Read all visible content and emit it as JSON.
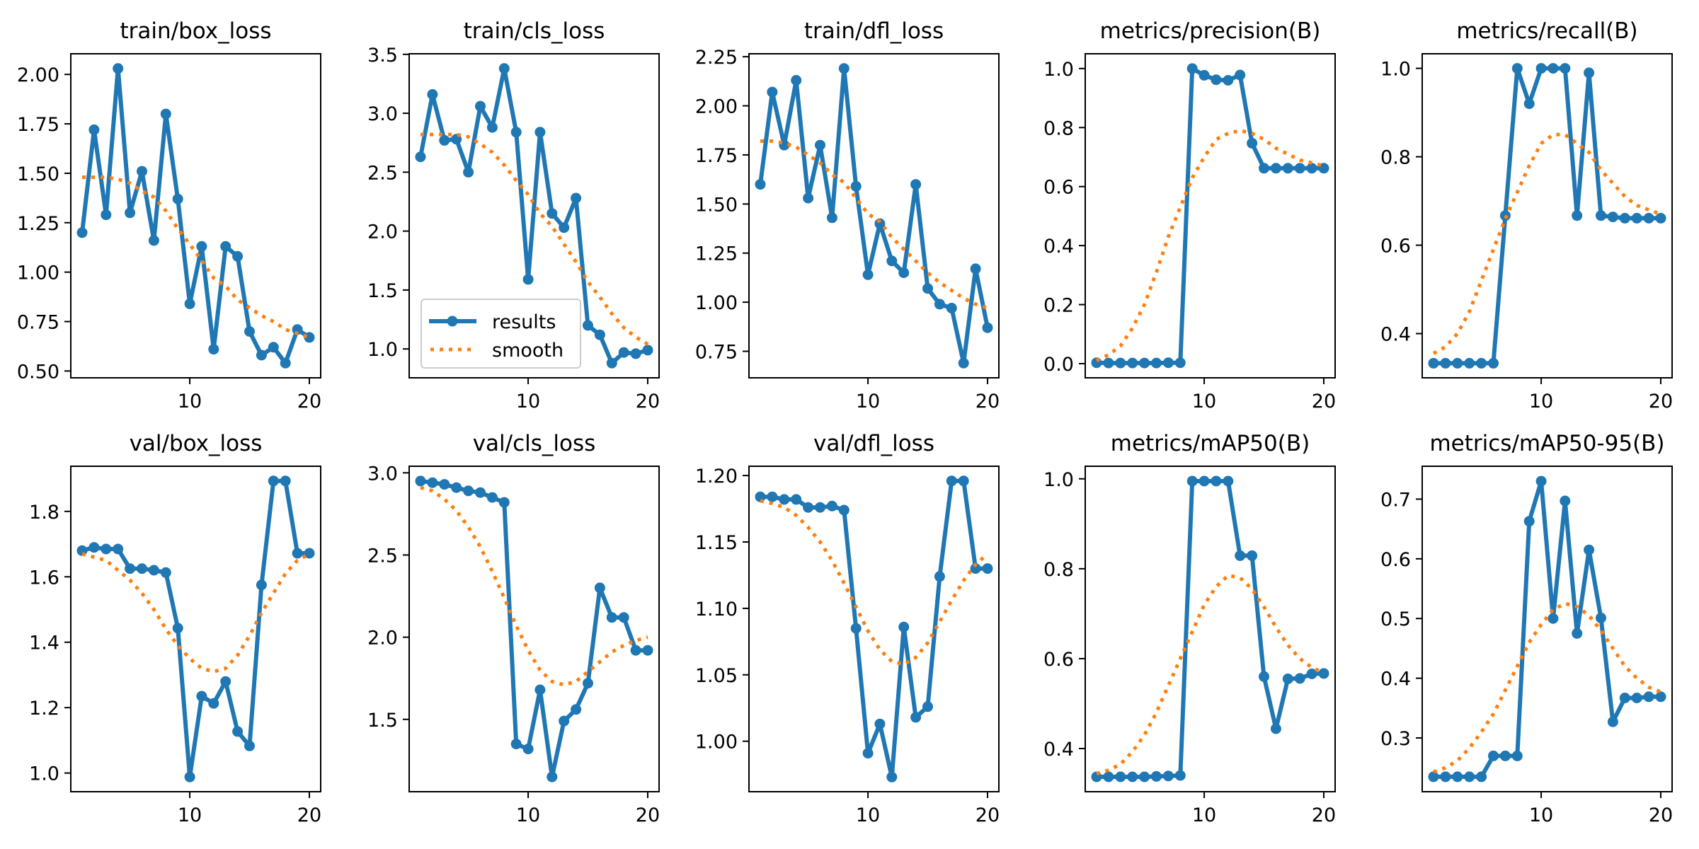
{
  "colors": {
    "results": "#1f77b4",
    "smooth": "#ff7f0e",
    "axes": "#000000",
    "legend_border": "#cccccc"
  },
  "legend": {
    "placement": "lower-left",
    "subplot_index": 1,
    "entries": [
      {
        "label": "results",
        "style": "line-with-markers"
      },
      {
        "label": "smooth",
        "style": "dotted"
      }
    ]
  },
  "chart_data": [
    {
      "type": "line",
      "title": "train/box_loss",
      "xlabel": "",
      "ylabel": "",
      "x": [
        1,
        2,
        3,
        4,
        5,
        6,
        7,
        8,
        9,
        10,
        11,
        12,
        13,
        14,
        15,
        16,
        17,
        18,
        19,
        20
      ],
      "xlim": [
        0.05,
        20.95
      ],
      "xticks": [
        10,
        20
      ],
      "ylim": [
        0.4655,
        2.1045
      ],
      "yticks": [
        0.5,
        0.75,
        1.0,
        1.25,
        1.5,
        1.75,
        2.0
      ],
      "ytick_labels": [
        "0.50",
        "0.75",
        "1.00",
        "1.25",
        "1.50",
        "1.75",
        "2.00"
      ],
      "grid": false,
      "series": [
        {
          "name": "results",
          "values": [
            1.2,
            1.72,
            1.29,
            2.03,
            1.3,
            1.51,
            1.16,
            1.8,
            1.37,
            0.84,
            1.13,
            0.61,
            1.13,
            1.08,
            0.7,
            0.58,
            0.62,
            0.54,
            0.71,
            0.67
          ]
        },
        {
          "name": "smooth",
          "values": [
            1.48,
            1.48,
            1.48,
            1.47,
            1.45,
            1.41,
            1.38,
            1.31,
            1.22,
            1.14,
            1.06,
            0.97,
            0.93,
            0.86,
            0.82,
            0.78,
            0.75,
            0.71,
            0.69,
            0.67
          ]
        }
      ]
    },
    {
      "type": "line",
      "title": "train/cls_loss",
      "xlabel": "",
      "ylabel": "",
      "x": [
        1,
        2,
        3,
        4,
        5,
        6,
        7,
        8,
        9,
        10,
        11,
        12,
        13,
        14,
        15,
        16,
        17,
        18,
        19,
        20
      ],
      "xlim": [
        0.05,
        20.95
      ],
      "xticks": [
        10,
        20
      ],
      "ylim": [
        0.755,
        3.505
      ],
      "yticks": [
        1.0,
        1.5,
        2.0,
        2.5,
        3.0,
        3.5
      ],
      "ytick_labels": [
        "1.0",
        "1.5",
        "2.0",
        "2.5",
        "3.0",
        "3.5"
      ],
      "grid": false,
      "series": [
        {
          "name": "results",
          "values": [
            2.63,
            3.16,
            2.77,
            2.78,
            2.5,
            3.06,
            2.88,
            3.38,
            2.84,
            1.59,
            2.84,
            2.15,
            2.03,
            2.28,
            1.2,
            1.12,
            0.88,
            0.97,
            0.96,
            0.99
          ]
        },
        {
          "name": "smooth",
          "values": [
            2.82,
            2.82,
            2.82,
            2.82,
            2.8,
            2.74,
            2.67,
            2.56,
            2.43,
            2.31,
            2.15,
            2.04,
            1.89,
            1.74,
            1.57,
            1.44,
            1.3,
            1.18,
            1.1,
            1.04
          ]
        }
      ]
    },
    {
      "type": "line",
      "title": "train/dfl_loss",
      "xlabel": "",
      "ylabel": "",
      "x": [
        1,
        2,
        3,
        4,
        5,
        6,
        7,
        8,
        9,
        10,
        11,
        12,
        13,
        14,
        15,
        16,
        17,
        18,
        19,
        20
      ],
      "xlim": [
        0.05,
        20.95
      ],
      "xticks": [
        10,
        20
      ],
      "ylim": [
        0.615,
        2.265
      ],
      "yticks": [
        0.75,
        1.0,
        1.25,
        1.5,
        1.75,
        2.0,
        2.25
      ],
      "ytick_labels": [
        "0.75",
        "1.00",
        "1.25",
        "1.50",
        "1.75",
        "2.00",
        "2.25"
      ],
      "grid": false,
      "series": [
        {
          "name": "results",
          "values": [
            1.6,
            2.07,
            1.8,
            2.13,
            1.53,
            1.8,
            1.43,
            2.19,
            1.59,
            1.14,
            1.4,
            1.21,
            1.15,
            1.6,
            1.07,
            0.99,
            0.97,
            0.69,
            1.17,
            0.87
          ]
        },
        {
          "name": "smooth",
          "values": [
            1.82,
            1.82,
            1.81,
            1.79,
            1.75,
            1.71,
            1.65,
            1.61,
            1.53,
            1.45,
            1.41,
            1.33,
            1.27,
            1.21,
            1.15,
            1.1,
            1.06,
            1.02,
            0.99,
            0.97
          ]
        }
      ]
    },
    {
      "type": "line",
      "title": "metrics/precision(B)",
      "xlabel": "",
      "ylabel": "",
      "x": [
        1,
        2,
        3,
        4,
        5,
        6,
        7,
        8,
        9,
        10,
        11,
        12,
        13,
        14,
        15,
        16,
        17,
        18,
        19,
        20
      ],
      "xlim": [
        0.05,
        20.95
      ],
      "xticks": [
        10,
        20
      ],
      "ylim": [
        -0.048,
        1.05
      ],
      "yticks": [
        0.0,
        0.2,
        0.4,
        0.6,
        0.8,
        1.0
      ],
      "ytick_labels": [
        "0.0",
        "0.2",
        "0.4",
        "0.6",
        "0.8",
        "1.0"
      ],
      "grid": false,
      "series": [
        {
          "name": "results",
          "values": [
            0.003,
            0.002,
            0.002,
            0.002,
            0.002,
            0.002,
            0.003,
            0.003,
            1.0,
            0.977,
            0.962,
            0.96,
            0.978,
            0.747,
            0.662,
            0.662,
            0.662,
            0.662,
            0.662,
            0.662
          ]
        },
        {
          "name": "smooth",
          "values": [
            0.01,
            0.03,
            0.06,
            0.12,
            0.2,
            0.31,
            0.43,
            0.53,
            0.63,
            0.7,
            0.76,
            0.78,
            0.79,
            0.78,
            0.76,
            0.73,
            0.71,
            0.69,
            0.68,
            0.67
          ]
        }
      ]
    },
    {
      "type": "line",
      "title": "metrics/recall(B)",
      "xlabel": "",
      "ylabel": "",
      "x": [
        1,
        2,
        3,
        4,
        5,
        6,
        7,
        8,
        9,
        10,
        11,
        12,
        13,
        14,
        15,
        16,
        17,
        18,
        19,
        20
      ],
      "xlim": [
        0.05,
        20.95
      ],
      "xticks": [
        10,
        20
      ],
      "ylim": [
        0.3,
        1.033
      ],
      "yticks": [
        0.4,
        0.6,
        0.8,
        1.0
      ],
      "ytick_labels": [
        "0.4",
        "0.6",
        "0.8",
        "1.0"
      ],
      "grid": false,
      "series": [
        {
          "name": "results",
          "values": [
            0.333,
            0.333,
            0.333,
            0.333,
            0.333,
            0.333,
            0.667,
            1.0,
            0.92,
            1.0,
            1.0,
            1.0,
            0.667,
            0.99,
            0.667,
            0.664,
            0.661,
            0.661,
            0.661,
            0.661
          ]
        },
        {
          "name": "smooth",
          "values": [
            0.355,
            0.37,
            0.4,
            0.45,
            0.52,
            0.59,
            0.66,
            0.72,
            0.78,
            0.83,
            0.85,
            0.85,
            0.83,
            0.81,
            0.77,
            0.74,
            0.71,
            0.69,
            0.68,
            0.67
          ]
        }
      ]
    },
    {
      "type": "line",
      "title": "val/box_loss",
      "xlabel": "",
      "ylabel": "",
      "x": [
        1,
        2,
        3,
        4,
        5,
        6,
        7,
        8,
        9,
        10,
        11,
        12,
        13,
        14,
        15,
        16,
        17,
        18,
        19,
        20
      ],
      "xlim": [
        0.05,
        20.95
      ],
      "xticks": [
        10,
        20
      ],
      "ylim": [
        0.943,
        1.938
      ],
      "yticks": [
        1.0,
        1.2,
        1.4,
        1.6,
        1.8
      ],
      "ytick_labels": [
        "1.0",
        "1.2",
        "1.4",
        "1.6",
        "1.8"
      ],
      "grid": false,
      "series": [
        {
          "name": "results",
          "values": [
            1.68,
            1.69,
            1.685,
            1.685,
            1.625,
            1.625,
            1.62,
            1.613,
            1.443,
            0.988,
            1.235,
            1.213,
            1.28,
            1.127,
            1.083,
            1.575,
            1.893,
            1.893,
            1.672,
            1.672
          ]
        },
        {
          "name": "smooth",
          "values": [
            1.67,
            1.66,
            1.65,
            1.62,
            1.59,
            1.55,
            1.5,
            1.44,
            1.39,
            1.35,
            1.32,
            1.31,
            1.32,
            1.36,
            1.42,
            1.49,
            1.55,
            1.61,
            1.65,
            1.67
          ]
        }
      ]
    },
    {
      "type": "line",
      "title": "val/cls_loss",
      "xlabel": "",
      "ylabel": "",
      "x": [
        1,
        2,
        3,
        4,
        5,
        6,
        7,
        8,
        9,
        10,
        11,
        12,
        13,
        14,
        15,
        16,
        17,
        18,
        19,
        20
      ],
      "xlim": [
        0.05,
        20.95
      ],
      "xticks": [
        10,
        20
      ],
      "ylim": [
        1.06,
        3.04
      ],
      "yticks": [
        1.5,
        2.0,
        2.5,
        3.0
      ],
      "ytick_labels": [
        "1.5",
        "2.0",
        "2.5",
        "3.0"
      ],
      "grid": false,
      "series": [
        {
          "name": "results",
          "values": [
            2.95,
            2.94,
            2.93,
            2.91,
            2.89,
            2.88,
            2.85,
            2.82,
            1.35,
            1.32,
            1.68,
            1.15,
            1.49,
            1.56,
            1.72,
            2.3,
            2.12,
            2.12,
            1.92,
            1.92
          ]
        },
        {
          "name": "smooth",
          "values": [
            2.91,
            2.89,
            2.84,
            2.77,
            2.67,
            2.55,
            2.4,
            2.24,
            2.07,
            1.92,
            1.8,
            1.73,
            1.71,
            1.73,
            1.79,
            1.85,
            1.91,
            1.95,
            1.98,
            2.0
          ]
        }
      ]
    },
    {
      "type": "line",
      "title": "val/dfl_loss",
      "xlabel": "",
      "ylabel": "",
      "x": [
        1,
        2,
        3,
        4,
        5,
        6,
        7,
        8,
        9,
        10,
        11,
        12,
        13,
        14,
        15,
        16,
        17,
        18,
        19,
        20
      ],
      "xlim": [
        0.05,
        20.95
      ],
      "xticks": [
        10,
        20
      ],
      "ylim": [
        0.962,
        1.207
      ],
      "yticks": [
        1.0,
        1.05,
        1.1,
        1.15,
        1.2
      ],
      "ytick_labels": [
        "1.00",
        "1.05",
        "1.10",
        "1.15",
        "1.20"
      ],
      "grid": false,
      "series": [
        {
          "name": "results",
          "values": [
            1.184,
            1.184,
            1.182,
            1.182,
            1.176,
            1.176,
            1.177,
            1.174,
            1.085,
            0.991,
            1.013,
            0.973,
            1.086,
            1.018,
            1.026,
            1.124,
            1.196,
            1.196,
            1.13,
            1.13
          ]
        },
        {
          "name": "smooth",
          "values": [
            1.181,
            1.179,
            1.176,
            1.17,
            1.161,
            1.15,
            1.136,
            1.119,
            1.101,
            1.083,
            1.069,
            1.06,
            1.058,
            1.063,
            1.074,
            1.09,
            1.106,
            1.121,
            1.133,
            1.141
          ]
        }
      ]
    },
    {
      "type": "line",
      "title": "metrics/mAP50(B)",
      "xlabel": "",
      "ylabel": "",
      "x": [
        1,
        2,
        3,
        4,
        5,
        6,
        7,
        8,
        9,
        10,
        11,
        12,
        13,
        14,
        15,
        16,
        17,
        18,
        19,
        20
      ],
      "xlim": [
        0.05,
        20.95
      ],
      "xticks": [
        10,
        20
      ],
      "ylim": [
        0.304,
        1.028
      ],
      "yticks": [
        0.4,
        0.6,
        0.8,
        1.0
      ],
      "ytick_labels": [
        "0.4",
        "0.6",
        "0.8",
        "1.0"
      ],
      "grid": false,
      "series": [
        {
          "name": "results",
          "values": [
            0.337,
            0.337,
            0.337,
            0.337,
            0.337,
            0.338,
            0.339,
            0.34,
            0.995,
            0.995,
            0.995,
            0.995,
            0.829,
            0.829,
            0.56,
            0.444,
            0.555,
            0.556,
            0.566,
            0.567
          ]
        },
        {
          "name": "smooth",
          "values": [
            0.344,
            0.352,
            0.365,
            0.393,
            0.43,
            0.48,
            0.54,
            0.6,
            0.66,
            0.72,
            0.76,
            0.785,
            0.78,
            0.755,
            0.715,
            0.67,
            0.63,
            0.6,
            0.58,
            0.568
          ]
        }
      ]
    },
    {
      "type": "line",
      "title": "metrics/mAP50-95(B)",
      "xlabel": "",
      "ylabel": "",
      "x": [
        1,
        2,
        3,
        4,
        5,
        6,
        7,
        8,
        9,
        10,
        11,
        12,
        13,
        14,
        15,
        16,
        17,
        18,
        19,
        20
      ],
      "xlim": [
        0.05,
        20.95
      ],
      "xticks": [
        10,
        20
      ],
      "ylim": [
        0.21,
        0.755
      ],
      "yticks": [
        0.3,
        0.4,
        0.5,
        0.6,
        0.7
      ],
      "ytick_labels": [
        "0.3",
        "0.4",
        "0.5",
        "0.6",
        "0.7"
      ],
      "grid": false,
      "series": [
        {
          "name": "results",
          "values": [
            0.235,
            0.235,
            0.235,
            0.235,
            0.235,
            0.27,
            0.27,
            0.27,
            0.663,
            0.73,
            0.5,
            0.697,
            0.475,
            0.615,
            0.501,
            0.327,
            0.367,
            0.367,
            0.369,
            0.369
          ]
        },
        {
          "name": "smooth",
          "values": [
            0.243,
            0.25,
            0.262,
            0.283,
            0.31,
            0.34,
            0.38,
            0.42,
            0.46,
            0.49,
            0.515,
            0.525,
            0.52,
            0.505,
            0.48,
            0.45,
            0.42,
            0.4,
            0.385,
            0.377
          ]
        }
      ]
    }
  ]
}
